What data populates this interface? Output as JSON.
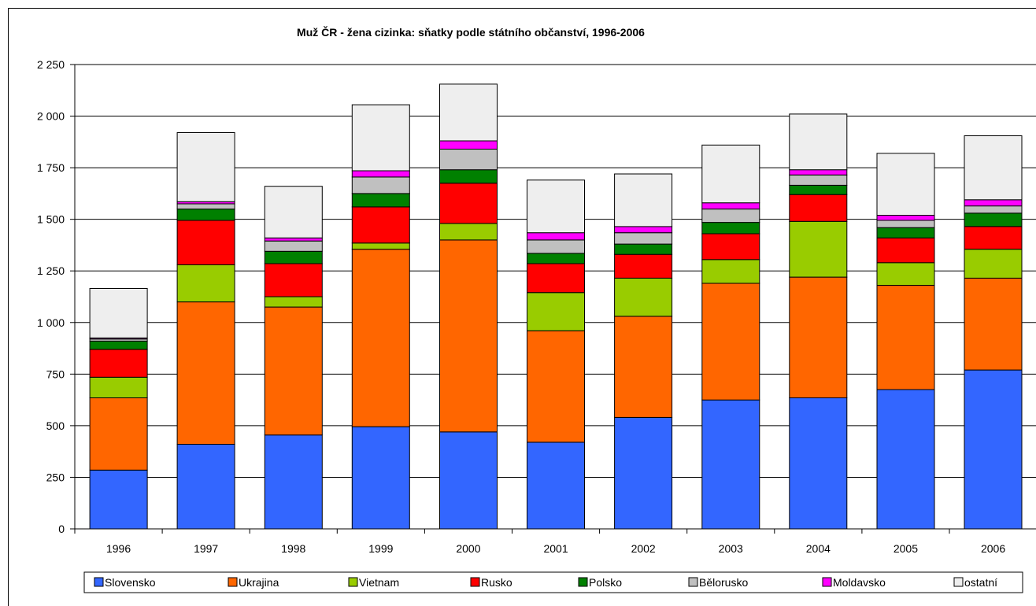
{
  "chart_data": {
    "type": "bar",
    "stacked": true,
    "title": "Muž ČR - žena cizinka: sňatky podle státního občanství, 1996-2006",
    "xlabel": "",
    "ylabel": "",
    "ylim": [
      0,
      2250
    ],
    "yticks": [
      0,
      250,
      500,
      750,
      1000,
      1250,
      1500,
      1750,
      2000,
      2250
    ],
    "ytick_labels": [
      "0",
      "250",
      "500",
      "750",
      "1 000",
      "1 250",
      "1 500",
      "1 750",
      "2 000",
      "2 250"
    ],
    "grid": true,
    "legend_position": "bottom",
    "categories": [
      "1996",
      "1997",
      "1998",
      "1999",
      "2000",
      "2001",
      "2002",
      "2003",
      "2004",
      "2005",
      "2006"
    ],
    "series": [
      {
        "name": "Slovensko",
        "color": "#3366ff",
        "values": [
          285,
          410,
          455,
          495,
          470,
          420,
          540,
          625,
          635,
          675,
          770
        ]
      },
      {
        "name": "Ukrajina",
        "color": "#ff6600",
        "values": [
          350,
          690,
          620,
          860,
          930,
          540,
          490,
          565,
          585,
          505,
          445
        ]
      },
      {
        "name": "Vietnam",
        "color": "#99cc00",
        "values": [
          100,
          180,
          50,
          30,
          80,
          185,
          185,
          115,
          270,
          110,
          140
        ]
      },
      {
        "name": "Rusko",
        "color": "#ff0000",
        "values": [
          135,
          215,
          160,
          175,
          195,
          140,
          115,
          125,
          130,
          120,
          110
        ]
      },
      {
        "name": "Polsko",
        "color": "#008000",
        "values": [
          40,
          55,
          60,
          65,
          65,
          50,
          50,
          55,
          45,
          50,
          65
        ]
      },
      {
        "name": "Bělorusko",
        "color": "#c0c0c0",
        "values": [
          10,
          25,
          50,
          80,
          100,
          65,
          55,
          65,
          50,
          35,
          35
        ]
      },
      {
        "name": "Moldavsko",
        "color": "#ff00ff",
        "values": [
          5,
          10,
          15,
          30,
          40,
          35,
          30,
          30,
          25,
          25,
          30
        ]
      },
      {
        "name": "ostatní",
        "color": "#eeeeee",
        "values": [
          240,
          335,
          250,
          320,
          275,
          255,
          255,
          280,
          270,
          300,
          310
        ]
      }
    ]
  }
}
